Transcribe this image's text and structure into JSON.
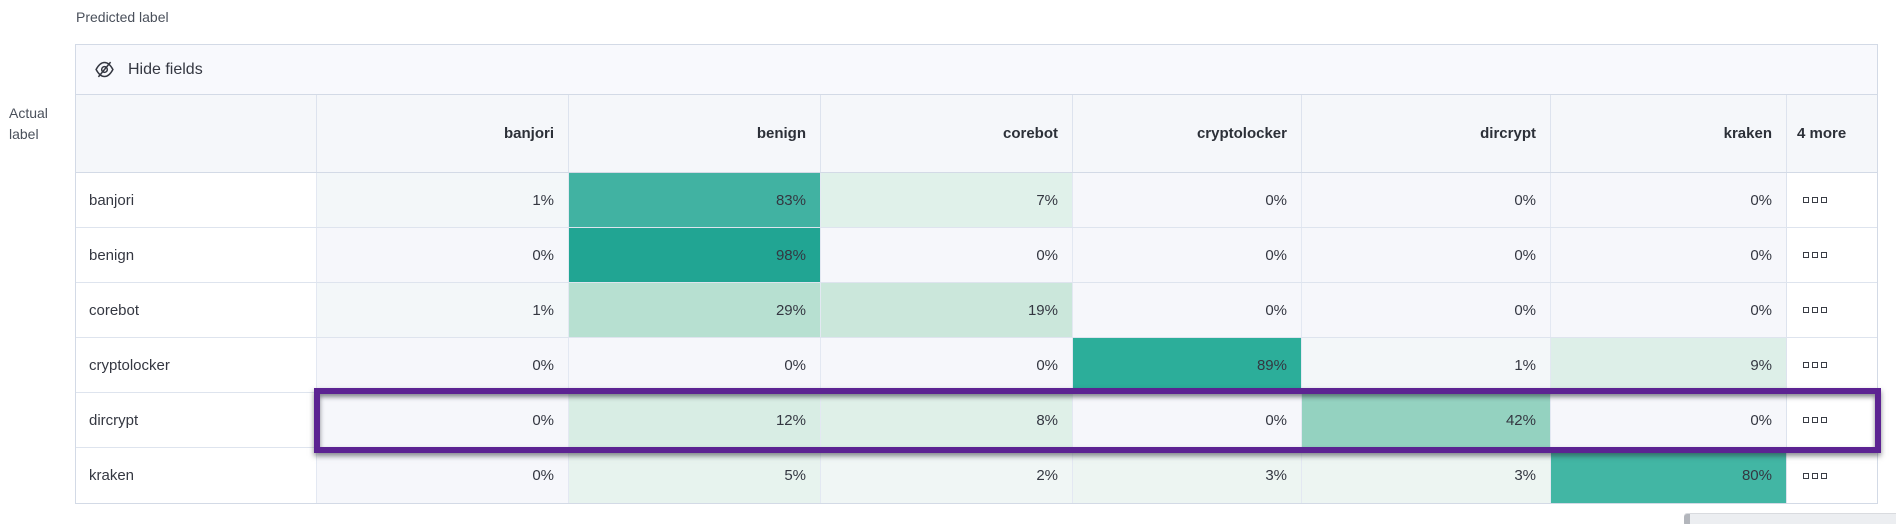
{
  "axis_labels": {
    "predicted": "Predicted label",
    "actual": "Actual label"
  },
  "toolbar": {
    "hide_fields_label": "Hide fields",
    "hide_fields_icon": "eye-closed-icon"
  },
  "chart_data": {
    "type": "heatmap",
    "description": "Confusion matrix of actual vs predicted labels, values in percent",
    "columns": [
      "banjori",
      "benign",
      "corebot",
      "cryptolocker",
      "dircrypt",
      "kraken"
    ],
    "overflow_column_label": "4 more",
    "rows": [
      {
        "label": "banjori",
        "values": [
          1,
          83,
          7,
          0,
          0,
          0
        ]
      },
      {
        "label": "benign",
        "values": [
          0,
          98,
          0,
          0,
          0,
          0
        ]
      },
      {
        "label": "corebot",
        "values": [
          1,
          29,
          19,
          0,
          0,
          0
        ]
      },
      {
        "label": "cryptolocker",
        "values": [
          0,
          0,
          0,
          89,
          1,
          9
        ]
      },
      {
        "label": "dircrypt",
        "values": [
          0,
          12,
          8,
          0,
          42,
          0
        ]
      },
      {
        "label": "kraken",
        "values": [
          0,
          5,
          2,
          3,
          3,
          80
        ]
      }
    ],
    "value_suffix": "%",
    "highlighted_row": "dircrypt",
    "row_actions_icon": "boxes-icon",
    "legend_position": "none",
    "grid": true
  },
  "colors": {
    "accent_teal": "#1ca391",
    "highlight_purple": "#5c2392",
    "cell_base": "#f6f7fb",
    "value_colors": {
      "0": "#f6f7fb",
      "1": "#f3f7f9",
      "2": "#f0f6f5",
      "3": "#edf5f2",
      "5": "#e7f3ee",
      "7": "#e0f1ea",
      "8": "#dff0e8",
      "9": "#ddefe8",
      "12": "#d8ede4",
      "19": "#cbe7db",
      "29": "#b7e0d1",
      "42": "#94d2c0",
      "80": "#42b6a4",
      "83": "#41b2a2",
      "89": "#2cae9a",
      "98": "#21a593"
    }
  }
}
